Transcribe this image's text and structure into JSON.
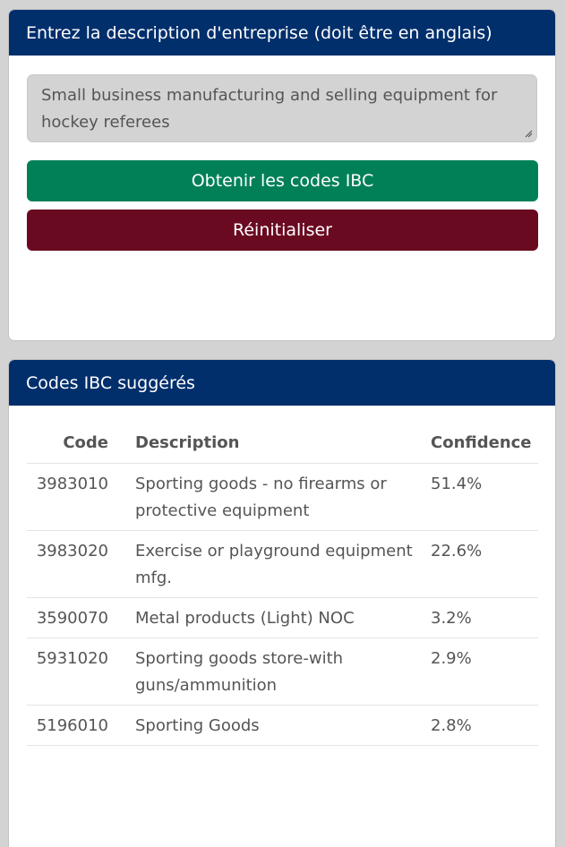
{
  "input_card": {
    "header": "Entrez la description d'entreprise (doit être en anglais)",
    "description_value": "Small business manufacturing and selling equipment for hockey referees",
    "submit_label": "Obtenir les codes IBC",
    "reset_label": "Réinitialiser"
  },
  "results_card": {
    "header": "Codes IBC suggérés",
    "columns": {
      "code": "Code",
      "description": "Description",
      "confidence": "Confidence"
    },
    "rows": [
      {
        "code": "3983010",
        "description": "Sporting goods - no firearms or protective equipment",
        "confidence": "51.4%"
      },
      {
        "code": "3983020",
        "description": "Exercise or playground equipment mfg.",
        "confidence": "22.6%"
      },
      {
        "code": "3590070",
        "description": "Metal products (Light) NOC",
        "confidence": "3.2%"
      },
      {
        "code": "5931020",
        "description": "Sporting goods store-with guns/ammunition",
        "confidence": "2.9%"
      },
      {
        "code": "5196010",
        "description": "Sporting Goods",
        "confidence": "2.8%"
      }
    ]
  },
  "colors": {
    "header_bg": "#012f6c",
    "primary_button": "#018058",
    "reset_button": "#6a0a21",
    "page_bg": "#d3d3d3"
  },
  "icons": {
    "textarea_resize": "resize-grip-icon"
  }
}
